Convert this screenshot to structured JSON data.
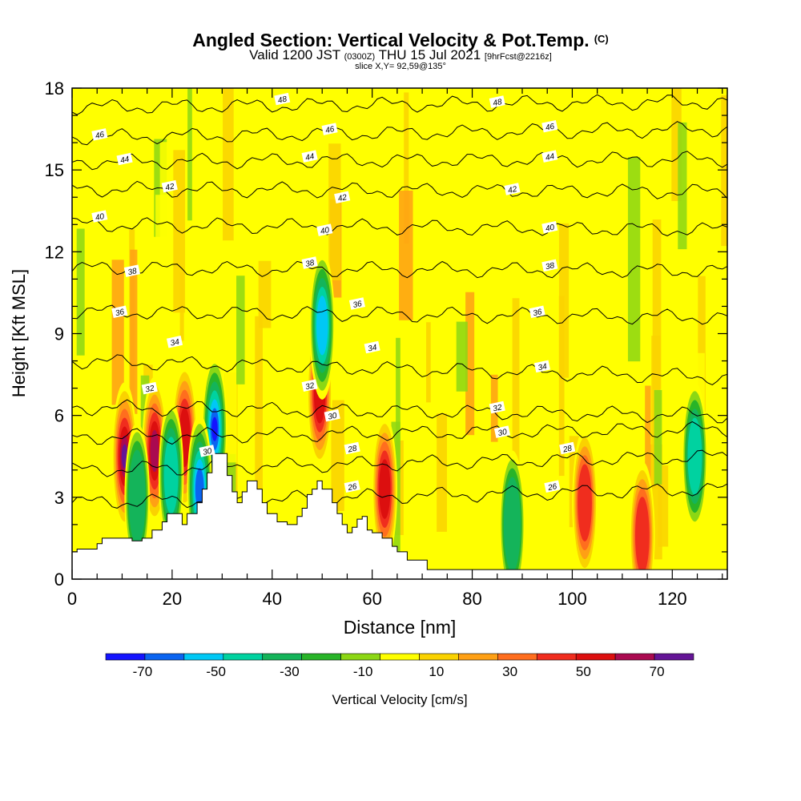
{
  "title": {
    "main": "Angled Section: Vertical Velocity & Pot.Temp.",
    "unit": "(C)",
    "valid_prefix": "Valid 1200 JST",
    "valid_zulu": "(0300Z)",
    "valid_date": "THU 15 Jul 2021",
    "fcst": "[9hrFcst@2216z]",
    "slice": "slice X,Y= 92,59@135°"
  },
  "chart_data": {
    "type": "heatmap",
    "xlabel": "Distance [nm]",
    "ylabel": "Height [Kft MSL]",
    "xlim": [
      0,
      131
    ],
    "ylim": [
      0,
      18
    ],
    "xticks": [
      0,
      20,
      40,
      60,
      80,
      100,
      120
    ],
    "yticks": [
      0,
      3,
      6,
      9,
      12,
      15,
      18
    ],
    "colorbar": {
      "label": "Vertical Velocity [cm/s]",
      "tick_values": [
        -70,
        -50,
        -30,
        -10,
        10,
        30,
        50,
        70
      ],
      "range": [
        -80,
        80
      ],
      "colors": [
        "#1414ff",
        "#0a64f0",
        "#00c8f5",
        "#00d2a0",
        "#14b45a",
        "#28b428",
        "#8cd714",
        "#ffff00",
        "#fad200",
        "#ffa014",
        "#ff6e1e",
        "#f02d1e",
        "#dc0f0f",
        "#aa0a50",
        "#641496"
      ]
    },
    "terrain_kft": [
      [
        0,
        1.0
      ],
      [
        1,
        1.0
      ],
      [
        1,
        1.1
      ],
      [
        5,
        1.1
      ],
      [
        5,
        1.3
      ],
      [
        6,
        1.3
      ],
      [
        6,
        1.5
      ],
      [
        12,
        1.5
      ],
      [
        12,
        1.4
      ],
      [
        14,
        1.4
      ],
      [
        14,
        1.5
      ],
      [
        16,
        1.5
      ],
      [
        16,
        1.8
      ],
      [
        18,
        1.8
      ],
      [
        18,
        2.1
      ],
      [
        19,
        2.1
      ],
      [
        19,
        2.4
      ],
      [
        22,
        2.4
      ],
      [
        22,
        2.0
      ],
      [
        23,
        2.0
      ],
      [
        23,
        2.4
      ],
      [
        25,
        2.4
      ],
      [
        25,
        2.8
      ],
      [
        26,
        2.8
      ],
      [
        26,
        3.3
      ],
      [
        27,
        3.3
      ],
      [
        27,
        3.9
      ],
      [
        28,
        3.9
      ],
      [
        28,
        4.6
      ],
      [
        31,
        4.6
      ],
      [
        31,
        3.8
      ],
      [
        32,
        3.8
      ],
      [
        32,
        3.2
      ],
      [
        33,
        3.2
      ],
      [
        33,
        2.8
      ],
      [
        34,
        2.8
      ],
      [
        34,
        3.2
      ],
      [
        35,
        3.2
      ],
      [
        35,
        3.6
      ],
      [
        37,
        3.6
      ],
      [
        37,
        3.3
      ],
      [
        38,
        3.3
      ],
      [
        38,
        2.8
      ],
      [
        39,
        2.8
      ],
      [
        39,
        2.4
      ],
      [
        41,
        2.4
      ],
      [
        41,
        2.1
      ],
      [
        43,
        2.1
      ],
      [
        43,
        2.0
      ],
      [
        45,
        2.0
      ],
      [
        45,
        2.3
      ],
      [
        46,
        2.3
      ],
      [
        46,
        2.6
      ],
      [
        47,
        2.6
      ],
      [
        47,
        3.1
      ],
      [
        48,
        3.1
      ],
      [
        48,
        3.3
      ],
      [
        49,
        3.3
      ],
      [
        49,
        3.6
      ],
      [
        50,
        3.6
      ],
      [
        50,
        3.3
      ],
      [
        52,
        3.3
      ],
      [
        52,
        2.8
      ],
      [
        53,
        2.8
      ],
      [
        53,
        2.4
      ],
      [
        54,
        2.4
      ],
      [
        54,
        2.0
      ],
      [
        55,
        2.0
      ],
      [
        55,
        1.7
      ],
      [
        56,
        1.7
      ],
      [
        56,
        1.9
      ],
      [
        57,
        1.9
      ],
      [
        57,
        2.2
      ],
      [
        58,
        2.2
      ],
      [
        58,
        2.3
      ],
      [
        59,
        2.3
      ],
      [
        59,
        1.8
      ],
      [
        60,
        1.8
      ],
      [
        60,
        1.7
      ],
      [
        62,
        1.7
      ],
      [
        62,
        1.5
      ],
      [
        64,
        1.5
      ],
      [
        64,
        1.2
      ],
      [
        65,
        1.2
      ],
      [
        65,
        1.0
      ],
      [
        67,
        1.0
      ],
      [
        67,
        0.7
      ],
      [
        71,
        0.7
      ],
      [
        71,
        0.35
      ],
      [
        131,
        0.35
      ]
    ],
    "updrafts_cm_s": [
      {
        "x": 10.5,
        "y": 4.5,
        "value": 75
      },
      {
        "x": 16.5,
        "y": 4.7,
        "value": 65
      },
      {
        "x": 22.5,
        "y": 5.2,
        "value": 55
      },
      {
        "x": 49.5,
        "y": 6.8,
        "value": 55
      },
      {
        "x": 62.5,
        "y": 3.3,
        "value": 50
      },
      {
        "x": 102.5,
        "y": 2.8,
        "value": 45
      },
      {
        "x": 114,
        "y": 1.6,
        "value": 40
      }
    ],
    "downdrafts_cm_s": [
      {
        "x": 28.5,
        "y": 5.5,
        "value": -70
      },
      {
        "x": 25.5,
        "y": 3.3,
        "value": -60
      },
      {
        "x": 50,
        "y": 9.3,
        "value": -50
      },
      {
        "x": 19.8,
        "y": 3.8,
        "value": -40
      },
      {
        "x": 13,
        "y": 3.0,
        "value": -35
      },
      {
        "x": 124.5,
        "y": 4.5,
        "value": -40
      },
      {
        "x": 88,
        "y": 2.0,
        "value": -30
      }
    ],
    "isentropes_c": [
      {
        "value": 26,
        "y_left": 2.8,
        "y_right": 3.3
      },
      {
        "value": 28,
        "y_left": 4.0,
        "y_right": 4.5
      },
      {
        "value": 30,
        "y_left": 5.2,
        "y_right": 5.5
      },
      {
        "value": 32,
        "y_left": 6.3,
        "y_right": 6.0
      },
      {
        "value": 34,
        "y_left": 8.0,
        "y_right": 7.4
      },
      {
        "value": 36,
        "y_left": 9.8,
        "y_right": 9.6
      },
      {
        "value": 38,
        "y_left": 11.4,
        "y_right": 11.3
      },
      {
        "value": 40,
        "y_left": 13.0,
        "y_right": 12.8
      },
      {
        "value": 42,
        "y_left": 14.3,
        "y_right": 14.2
      },
      {
        "value": 44,
        "y_left": 15.3,
        "y_right": 15.4
      },
      {
        "value": 46,
        "y_left": 16.2,
        "y_right": 16.5
      },
      {
        "value": 48,
        "y_left": 17.3,
        "y_right": 17.5
      }
    ],
    "isentrope_labels": [
      {
        "text": "46",
        "x": 5.5,
        "y": 16.3
      },
      {
        "text": "44",
        "x": 10.5,
        "y": 15.4
      },
      {
        "text": "42",
        "x": 19.5,
        "y": 14.4
      },
      {
        "text": "40",
        "x": 5.5,
        "y": 13.3
      },
      {
        "text": "38",
        "x": 12,
        "y": 11.3
      },
      {
        "text": "36",
        "x": 9.5,
        "y": 9.8
      },
      {
        "text": "34",
        "x": 20.5,
        "y": 8.7
      },
      {
        "text": "32",
        "x": 15.5,
        "y": 7.0
      },
      {
        "text": "30",
        "x": 27,
        "y": 4.7
      },
      {
        "text": "48",
        "x": 42,
        "y": 17.6
      },
      {
        "text": "46",
        "x": 51.5,
        "y": 16.5
      },
      {
        "text": "44",
        "x": 47.5,
        "y": 15.5
      },
      {
        "text": "42",
        "x": 54,
        "y": 14.0
      },
      {
        "text": "40",
        "x": 50.5,
        "y": 12.8
      },
      {
        "text": "38",
        "x": 47.5,
        "y": 11.6
      },
      {
        "text": "36",
        "x": 57,
        "y": 10.1
      },
      {
        "text": "34",
        "x": 60,
        "y": 8.5
      },
      {
        "text": "32",
        "x": 47.5,
        "y": 7.1
      },
      {
        "text": "30",
        "x": 52,
        "y": 6.0
      },
      {
        "text": "28",
        "x": 56,
        "y": 4.8
      },
      {
        "text": "26",
        "x": 56,
        "y": 3.4
      },
      {
        "text": "48",
        "x": 85,
        "y": 17.5
      },
      {
        "text": "46",
        "x": 95.5,
        "y": 16.6
      },
      {
        "text": "44",
        "x": 95.5,
        "y": 15.5
      },
      {
        "text": "42",
        "x": 88,
        "y": 14.3
      },
      {
        "text": "40",
        "x": 95.5,
        "y": 12.9
      },
      {
        "text": "38",
        "x": 95.5,
        "y": 11.5
      },
      {
        "text": "36",
        "x": 93,
        "y": 9.8
      },
      {
        "text": "34",
        "x": 94,
        "y": 7.8
      },
      {
        "text": "32",
        "x": 85,
        "y": 6.3
      },
      {
        "text": "30",
        "x": 86,
        "y": 5.4
      },
      {
        "text": "28",
        "x": 99,
        "y": 4.8
      },
      {
        "text": "26",
        "x": 96,
        "y": 3.4
      }
    ]
  }
}
